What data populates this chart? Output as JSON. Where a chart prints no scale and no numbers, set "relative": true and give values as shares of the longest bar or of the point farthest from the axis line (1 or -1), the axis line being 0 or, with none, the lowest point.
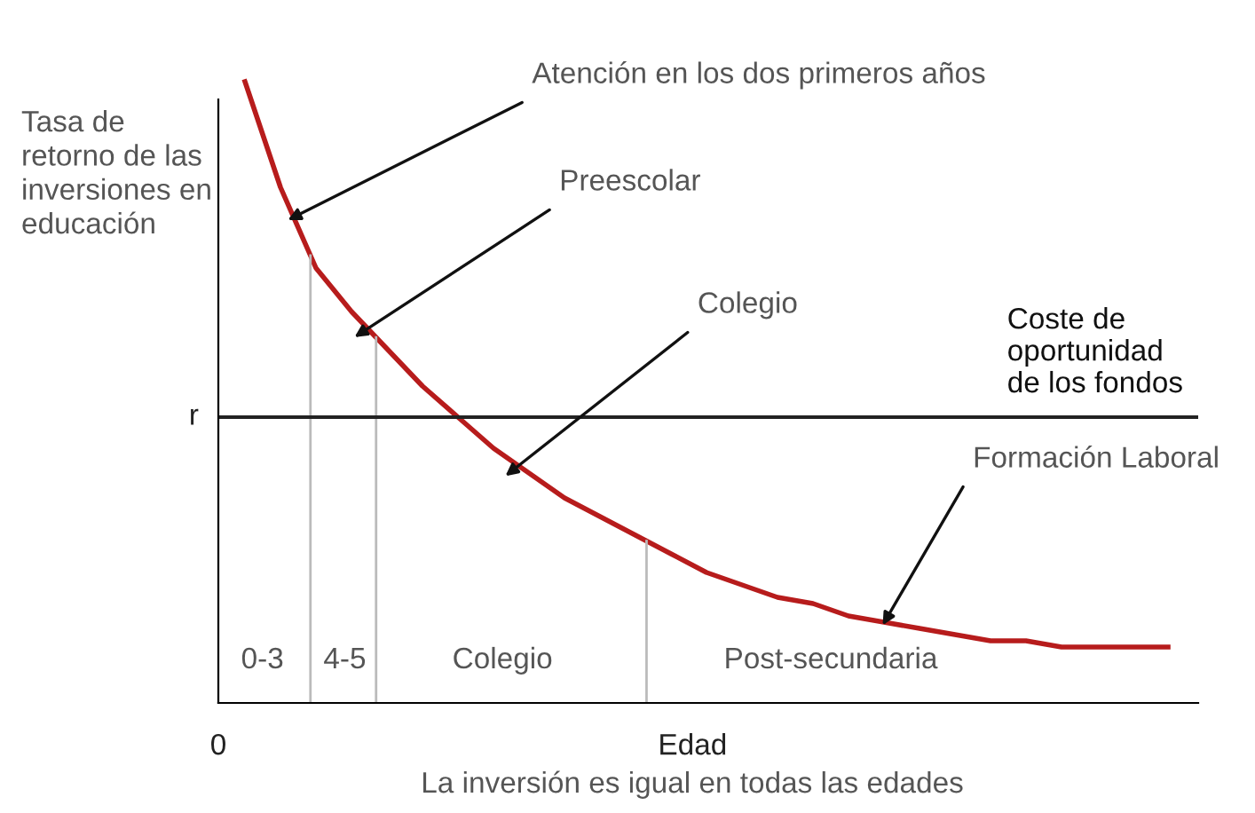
{
  "chart_data": {
    "type": "line",
    "relative": true,
    "ylabel": "Tasa de\nretorno de las\ninversiones en\neducación",
    "xlabel": "La inversión es igual en todas las edades",
    "categories": [
      null,
      null,
      null,
      null,
      null,
      null,
      null,
      null,
      null,
      null,
      null,
      null,
      null,
      null,
      null,
      null,
      null,
      null,
      null,
      null,
      null,
      null,
      null,
      null,
      null,
      null,
      null
    ],
    "series": [
      {
        "color": "#b71c1c",
        "values": [
          1.0,
          0.83,
          0.7,
          0.63,
          0.57,
          0.51,
          0.46,
          0.41,
          0.37,
          0.33,
          0.3,
          0.27,
          0.24,
          0.21,
          0.19,
          0.17,
          0.16,
          0.14,
          0.13,
          0.12,
          0.11,
          0.1,
          0.1,
          0.09,
          0.09,
          0.09,
          0.09
        ]
      }
    ],
    "ref_lines": [
      {
        "axis": "y",
        "value": 0.46,
        "label": "r",
        "color": "#222222"
      }
    ],
    "annotations": [
      "Atención en los dos primeros años",
      "Preescolar",
      "Colegio",
      "Formación Laboral",
      {
        "text": "Coste de\noportunidad\nde los fondos",
        "y": 0.46
      },
      "0-3",
      "4-5",
      "Colegio",
      "Post-secundaria",
      "0",
      "Edad"
    ],
    "grid": false,
    "legend": false,
    "marker": "none",
    "line_style": "solid"
  }
}
